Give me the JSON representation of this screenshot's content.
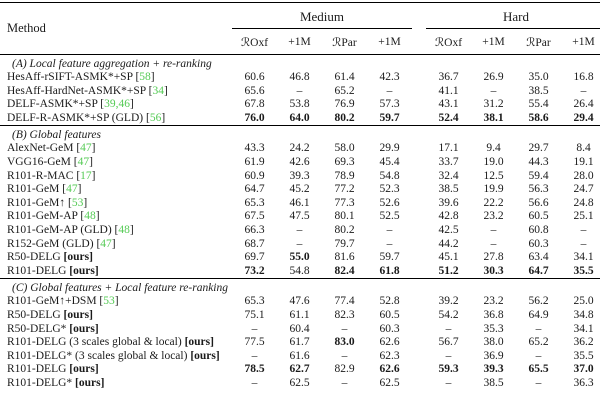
{
  "table": {
    "method_header": "Method",
    "citation_color": "#55cb55",
    "groups": [
      {
        "label": "Medium"
      },
      {
        "label": "Hard"
      }
    ],
    "subheaders": [
      "ℛOxf",
      "+1M",
      "ℛPar",
      "+1M",
      "ℛOxf",
      "+1M",
      "ℛPar",
      "+1M"
    ],
    "ours_label": "[ours]",
    "sections": [
      {
        "label": "(A) Local feature aggregation + re-ranking",
        "rows": [
          {
            "name": "HesAff-rSIFT-ASMK*+SP",
            "cite": "58",
            "values": [
              "60.6",
              "46.8",
              "61.4",
              "42.3",
              "36.7",
              "26.9",
              "35.0",
              "16.8"
            ]
          },
          {
            "name": "HesAff-HardNet-ASMK*+SP",
            "cite": "34",
            "values": [
              "65.6",
              "–",
              "65.2",
              "–",
              "41.1",
              "–",
              "38.5",
              "–"
            ]
          },
          {
            "name": "DELF-ASMK*+SP",
            "cite": "39,46",
            "values": [
              "67.8",
              "53.8",
              "76.9",
              "57.3",
              "43.1",
              "31.2",
              "55.4",
              "26.4"
            ]
          },
          {
            "name": "DELF-R-ASMK*+SP (GLD)",
            "cite": "56",
            "values": [
              "76.0",
              "64.0",
              "80.2",
              "59.7",
              "52.4",
              "38.1",
              "58.6",
              "29.4"
            ],
            "bold": [
              1,
              1,
              1,
              1,
              1,
              1,
              1,
              1
            ]
          }
        ]
      },
      {
        "label": "(B) Global features",
        "rows": [
          {
            "name": "AlexNet-GeM",
            "cite": "47",
            "values": [
              "43.3",
              "24.2",
              "58.0",
              "29.9",
              "17.1",
              "9.4",
              "29.7",
              "8.4"
            ]
          },
          {
            "name": "VGG16-GeM",
            "cite": "47",
            "values": [
              "61.9",
              "42.6",
              "69.3",
              "45.4",
              "33.7",
              "19.0",
              "44.3",
              "19.1"
            ]
          },
          {
            "name": "R101-R-MAC",
            "cite": "17",
            "values": [
              "60.9",
              "39.3",
              "78.9",
              "54.8",
              "32.4",
              "12.5",
              "59.4",
              "28.0"
            ]
          },
          {
            "name": "R101-GeM",
            "cite": "47",
            "values": [
              "64.7",
              "45.2",
              "77.2",
              "52.3",
              "38.5",
              "19.9",
              "56.3",
              "24.7"
            ]
          },
          {
            "name": "R101-GeM↑",
            "cite": "53",
            "values": [
              "65.3",
              "46.1",
              "77.3",
              "52.6",
              "39.6",
              "22.2",
              "56.6",
              "24.8"
            ]
          },
          {
            "name": "R101-GeM-AP",
            "cite": "48",
            "values": [
              "67.5",
              "47.5",
              "80.1",
              "52.5",
              "42.8",
              "23.2",
              "60.5",
              "25.1"
            ]
          },
          {
            "name": "R101-GeM-AP (GLD)",
            "cite": "48",
            "values": [
              "66.3",
              "–",
              "80.2",
              "–",
              "42.5",
              "–",
              "60.8",
              "–"
            ]
          },
          {
            "name": "R152-GeM (GLD)",
            "cite": "47",
            "values": [
              "68.7",
              "–",
              "79.7",
              "–",
              "44.2",
              "–",
              "60.3",
              "–"
            ]
          },
          {
            "name": "R50-DELG",
            "tag": "[ours]",
            "values": [
              "69.7",
              "55.0",
              "81.6",
              "59.7",
              "45.1",
              "27.8",
              "63.4",
              "34.1"
            ],
            "bold": [
              0,
              1,
              0,
              0,
              0,
              0,
              0,
              0
            ]
          },
          {
            "name": "R101-DELG",
            "tag": "[ours]",
            "values": [
              "73.2",
              "54.8",
              "82.4",
              "61.8",
              "51.2",
              "30.3",
              "64.7",
              "35.5"
            ],
            "bold": [
              1,
              0,
              1,
              1,
              1,
              1,
              1,
              1
            ]
          }
        ]
      },
      {
        "label": "(C) Global features + Local feature re-ranking",
        "rows": [
          {
            "name": "R101-GeM↑+DSM",
            "cite": "53",
            "values": [
              "65.3",
              "47.6",
              "77.4",
              "52.8",
              "39.2",
              "23.2",
              "56.2",
              "25.0"
            ]
          },
          {
            "name": "R50-DELG",
            "tag": "[ours]",
            "values": [
              "75.1",
              "61.1",
              "82.3",
              "60.5",
              "54.2",
              "36.8",
              "64.9",
              "34.8"
            ]
          },
          {
            "name": "R50-DELG*",
            "tag": "[ours]",
            "values": [
              "–",
              "60.4",
              "–",
              "60.3",
              "–",
              "35.3",
              "–",
              "34.1"
            ]
          },
          {
            "name": "R101-DELG  (3 scales global & local)",
            "tag": "[ours]",
            "values": [
              "77.5",
              "61.7",
              "83.0",
              "62.6",
              "56.7",
              "38.0",
              "65.2",
              "36.2"
            ],
            "bold": [
              0,
              0,
              1,
              0,
              0,
              0,
              0,
              0
            ]
          },
          {
            "name": "R101-DELG* (3 scales global & local)",
            "tag": "[ours]",
            "values": [
              "–",
              "61.6",
              "–",
              "62.3",
              "–",
              "36.9",
              "–",
              "35.5"
            ]
          },
          {
            "name": "R101-DELG",
            "tag": "[ours]",
            "values": [
              "78.5",
              "62.7",
              "82.9",
              "62.6",
              "59.3",
              "39.3",
              "65.5",
              "37.0"
            ],
            "bold": [
              1,
              1,
              0,
              1,
              1,
              1,
              1,
              1
            ]
          },
          {
            "name": "R101-DELG*",
            "tag": "[ours]",
            "values": [
              "–",
              "62.5",
              "–",
              "62.5",
              "–",
              "38.5",
              "–",
              "36.3"
            ]
          }
        ]
      }
    ]
  }
}
